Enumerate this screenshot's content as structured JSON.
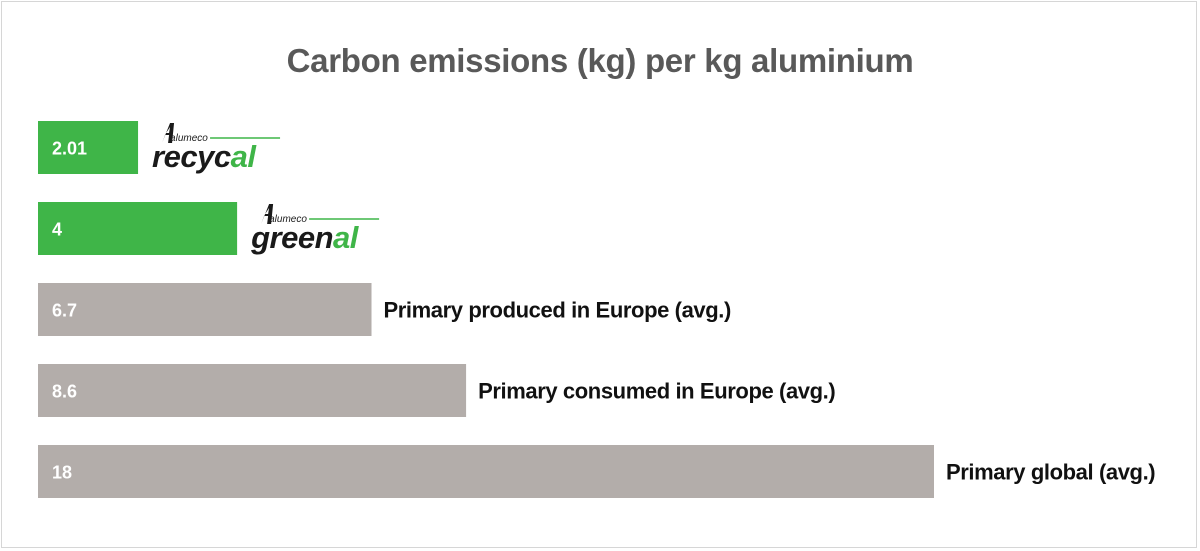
{
  "chart_data": {
    "type": "bar",
    "orientation": "horizontal",
    "title": "Carbon emissions (kg) per kg aluminium",
    "xlim": [
      0,
      18
    ],
    "grid": false,
    "legend": "none",
    "bars": [
      {
        "value": 2.01,
        "value_label": "2.01",
        "color": "#3fb548",
        "label_kind": "logo",
        "logo": {
          "brand": "alumeco",
          "word_dark": "recyc",
          "word_accent": "al"
        }
      },
      {
        "value": 4,
        "value_label": "4",
        "color": "#3fb548",
        "label_kind": "logo",
        "logo": {
          "brand": "alumeco",
          "word_dark": "green",
          "word_accent": "al"
        }
      },
      {
        "value": 6.7,
        "value_label": "6.7",
        "color": "#b3adaa",
        "label_kind": "text",
        "label": "Primary produced in Europe (avg.)"
      },
      {
        "value": 8.6,
        "value_label": "8.6",
        "color": "#b3adaa",
        "label_kind": "text",
        "label": "Primary consumed in Europe (avg.)"
      },
      {
        "value": 18,
        "value_label": "18",
        "color": "#b3adaa",
        "label_kind": "text",
        "label": "Primary global (avg.)"
      }
    ],
    "colors": {
      "accent_green": "#3fb548",
      "bar_grey": "#b3adaa",
      "title": "#595959"
    }
  }
}
